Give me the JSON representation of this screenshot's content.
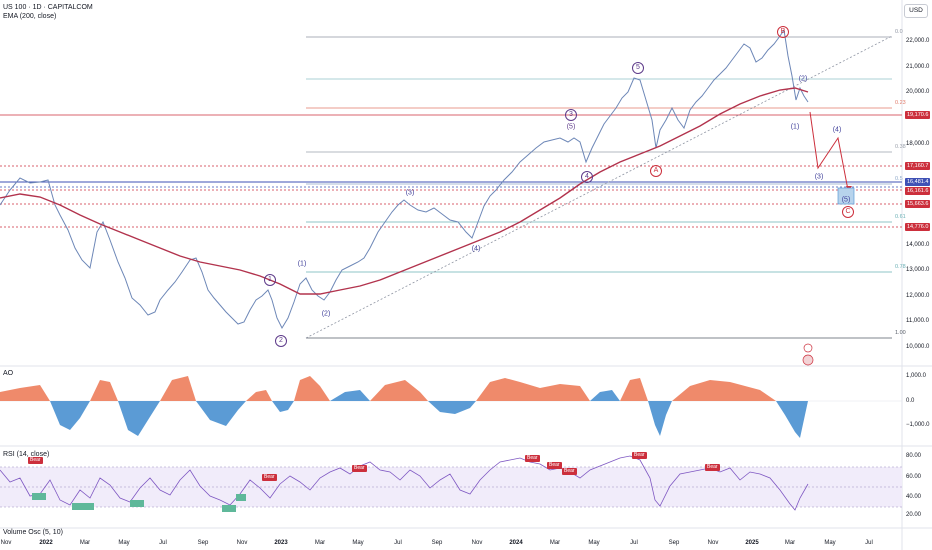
{
  "header": {
    "symbol": "US 100 · 1D · CAPITALCOM",
    "indicator": "EMA (200, close)",
    "currency": "USD"
  },
  "price_axis": {
    "ticks": [
      "22,000.0",
      "21,000.0",
      "20,000.0",
      "18,000.0",
      "14,000.0",
      "13,000.0",
      "12,000.0",
      "11,000.0",
      "10,000.0"
    ],
    "tags": [
      {
        "label": "19,170.6",
        "color": "#cc2f3c"
      },
      {
        "label": "17,160.7",
        "color": "#cc2f3c"
      },
      {
        "label": "16,481.4",
        "color": "#3f51b5"
      },
      {
        "label": "16,161.6",
        "color": "#cc2f3c"
      },
      {
        "label": "15,663.6",
        "color": "#cc2f3c"
      },
      {
        "label": "14,776.0",
        "color": "#cc2f3c"
      }
    ]
  },
  "fib_levels": [
    "0.0",
    "0.23",
    "0.38",
    "0.5",
    "0.61",
    "0.78",
    "1.00"
  ],
  "waves": {
    "major": [
      "1",
      "2",
      "3",
      "4",
      "5",
      "A",
      "B",
      "C"
    ],
    "minor": [
      "(1)",
      "(2)",
      "(3)",
      "(4)",
      "(5)"
    ]
  },
  "ao_panel": {
    "label": "AO",
    "ticks": [
      "1,000.0",
      "0.0",
      "−1,000.0"
    ]
  },
  "rsi_panel": {
    "label": "RSI (14, close)",
    "ticks": [
      "80.00",
      "60.00",
      "40.00",
      "20.00"
    ],
    "signal_label": "Bear"
  },
  "volume_label": "Volume Osc (5, 10)",
  "time_axis": [
    "Nov",
    "2022",
    "Mar",
    "May",
    "Jul",
    "Sep",
    "Nov",
    "2023",
    "Mar",
    "May",
    "Jul",
    "Sep",
    "Nov",
    "2024",
    "Mar",
    "May",
    "Jul",
    "Sep",
    "Nov",
    "2025",
    "Mar",
    "May",
    "Jul"
  ],
  "colors": {
    "bear": "#cc2f3c",
    "bull": "#5fb89a",
    "ema": "#b2334d",
    "up": "#5b9bd5",
    "down": "#ef8a6b"
  }
}
